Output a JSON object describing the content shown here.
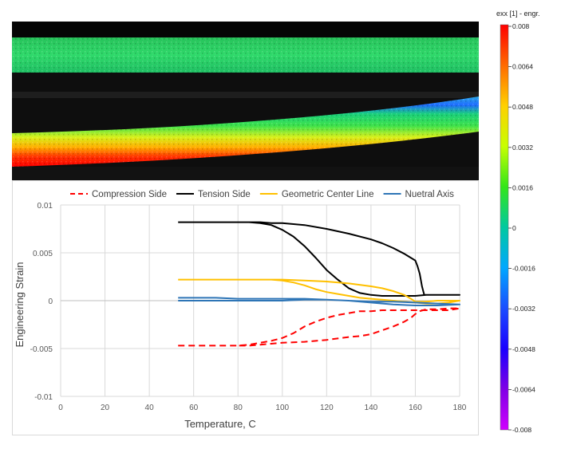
{
  "colorbar": {
    "title": "exx [1] - engr.",
    "ticks": [
      "0.008",
      "0.0064",
      "0.0048",
      "0.0032",
      "0.0016",
      "0",
      "-0.0016",
      "-0.0032",
      "-0.0048",
      "-0.0064",
      "-0.008"
    ],
    "colors": [
      "#ff0000",
      "#ff6a00",
      "#ffd000",
      "#c8ff00",
      "#33e619",
      "#00c9a0",
      "#00a8ff",
      "#1a4dff",
      "#1a00ff",
      "#8000e6",
      "#d000ff"
    ]
  },
  "chart_data": {
    "type": "line",
    "xlabel": "Temperature, C",
    "ylabel": "Engineering Strain",
    "xlim": [
      0,
      180
    ],
    "ylim": [
      -0.01,
      0.01
    ],
    "xticks": [
      0,
      20,
      40,
      60,
      80,
      100,
      120,
      140,
      160,
      180
    ],
    "yticks": [
      0.01,
      0.005,
      0,
      -0.005,
      -0.01
    ],
    "ytick_labels": [
      "0.01",
      "0.005",
      "0",
      "-0.005",
      "-0.01"
    ],
    "grid": true,
    "legend_position": "top",
    "series": [
      {
        "name": "Compression Side",
        "color": "#ff0000",
        "dash": "8,5",
        "width": 2,
        "x": [
          53,
          60,
          70,
          80,
          85,
          90,
          95,
          100,
          105,
          110,
          115,
          120,
          125,
          130,
          135,
          140,
          145,
          150,
          155,
          160,
          165,
          170,
          175,
          180,
          175,
          170,
          165,
          162,
          160,
          158,
          155,
          150,
          145,
          140,
          135,
          130,
          120,
          110,
          100,
          95,
          90,
          85,
          80
        ],
        "y": [
          -0.0047,
          -0.0047,
          -0.0047,
          -0.0047,
          -0.0046,
          -0.0044,
          -0.0042,
          -0.0039,
          -0.0034,
          -0.0027,
          -0.0022,
          -0.0018,
          -0.0015,
          -0.0013,
          -0.0011,
          -0.0011,
          -0.001,
          -0.001,
          -0.001,
          -0.001,
          -0.001,
          -0.001,
          -0.001,
          -0.0008,
          -0.0008,
          -0.0009,
          -0.0009,
          -0.0011,
          -0.0014,
          -0.0018,
          -0.0022,
          -0.0027,
          -0.0031,
          -0.0035,
          -0.0037,
          -0.0038,
          -0.0041,
          -0.0043,
          -0.0044,
          -0.0045,
          -0.0046,
          -0.0047,
          -0.0047
        ]
      },
      {
        "name": "Tension Side",
        "color": "#000000",
        "dash": "",
        "width": 2,
        "x": [
          53,
          60,
          70,
          80,
          85,
          90,
          95,
          100,
          105,
          110,
          115,
          120,
          125,
          130,
          135,
          140,
          145,
          150,
          155,
          160,
          165,
          170,
          175,
          180,
          175,
          170,
          165,
          164,
          163,
          162,
          161,
          160,
          155,
          150,
          145,
          140,
          130,
          120,
          110,
          100,
          95,
          90,
          85,
          80
        ],
        "y": [
          0.0082,
          0.0082,
          0.0082,
          0.0082,
          0.0082,
          0.0081,
          0.0079,
          0.0074,
          0.0067,
          0.0057,
          0.0045,
          0.0032,
          0.0022,
          0.0013,
          0.0008,
          0.0006,
          0.0005,
          0.0005,
          0.0005,
          0.0005,
          0.0006,
          0.0006,
          0.0006,
          0.0006,
          0.0006,
          0.0006,
          0.0006,
          0.0006,
          0.0015,
          0.0028,
          0.0036,
          0.0042,
          0.0049,
          0.0055,
          0.006,
          0.0064,
          0.007,
          0.0075,
          0.0079,
          0.0081,
          0.0081,
          0.0082,
          0.0082,
          0.0082
        ]
      },
      {
        "name": "Geometric Center Line",
        "color": "#ffc000",
        "dash": "",
        "width": 2,
        "x": [
          53,
          60,
          70,
          80,
          90,
          95,
          100,
          105,
          110,
          115,
          120,
          125,
          130,
          135,
          140,
          145,
          150,
          155,
          160,
          165,
          170,
          175,
          180,
          175,
          170,
          165,
          160,
          158,
          155,
          150,
          145,
          140,
          130,
          120,
          110,
          100,
          90,
          80
        ],
        "y": [
          0.0022,
          0.0022,
          0.0022,
          0.0022,
          0.0022,
          0.0022,
          0.0021,
          0.0019,
          0.0016,
          0.0012,
          0.0009,
          0.0007,
          0.0005,
          0.0003,
          0.0002,
          0.0001,
          0.0,
          -0.0001,
          -0.0002,
          -0.0003,
          -0.0003,
          -0.0002,
          0.0,
          0.0,
          0.0,
          -0.0001,
          -0.0001,
          0.0002,
          0.0006,
          0.001,
          0.0013,
          0.0015,
          0.0018,
          0.002,
          0.0021,
          0.0022,
          0.0022,
          0.0022
        ]
      },
      {
        "name": "Nuetral Axis",
        "color": "#2e75b6",
        "dash": "",
        "width": 2,
        "x": [
          53,
          60,
          70,
          80,
          90,
          100,
          110,
          120,
          130,
          140,
          150,
          160,
          170,
          180,
          170,
          160,
          150,
          140,
          130,
          120,
          110,
          100,
          90,
          80,
          70,
          60,
          53
        ],
        "y": [
          0.0003,
          0.0003,
          0.0003,
          0.0002,
          0.0002,
          0.0002,
          0.0002,
          0.0001,
          0.0,
          -0.0002,
          -0.0004,
          -0.0005,
          -0.0005,
          -0.0004,
          -0.0003,
          -0.0002,
          -0.0001,
          -0.0001,
          0.0,
          0.0001,
          0.0001,
          0.0,
          0.0,
          0.0,
          0.0,
          0.0,
          0.0
        ]
      }
    ]
  }
}
